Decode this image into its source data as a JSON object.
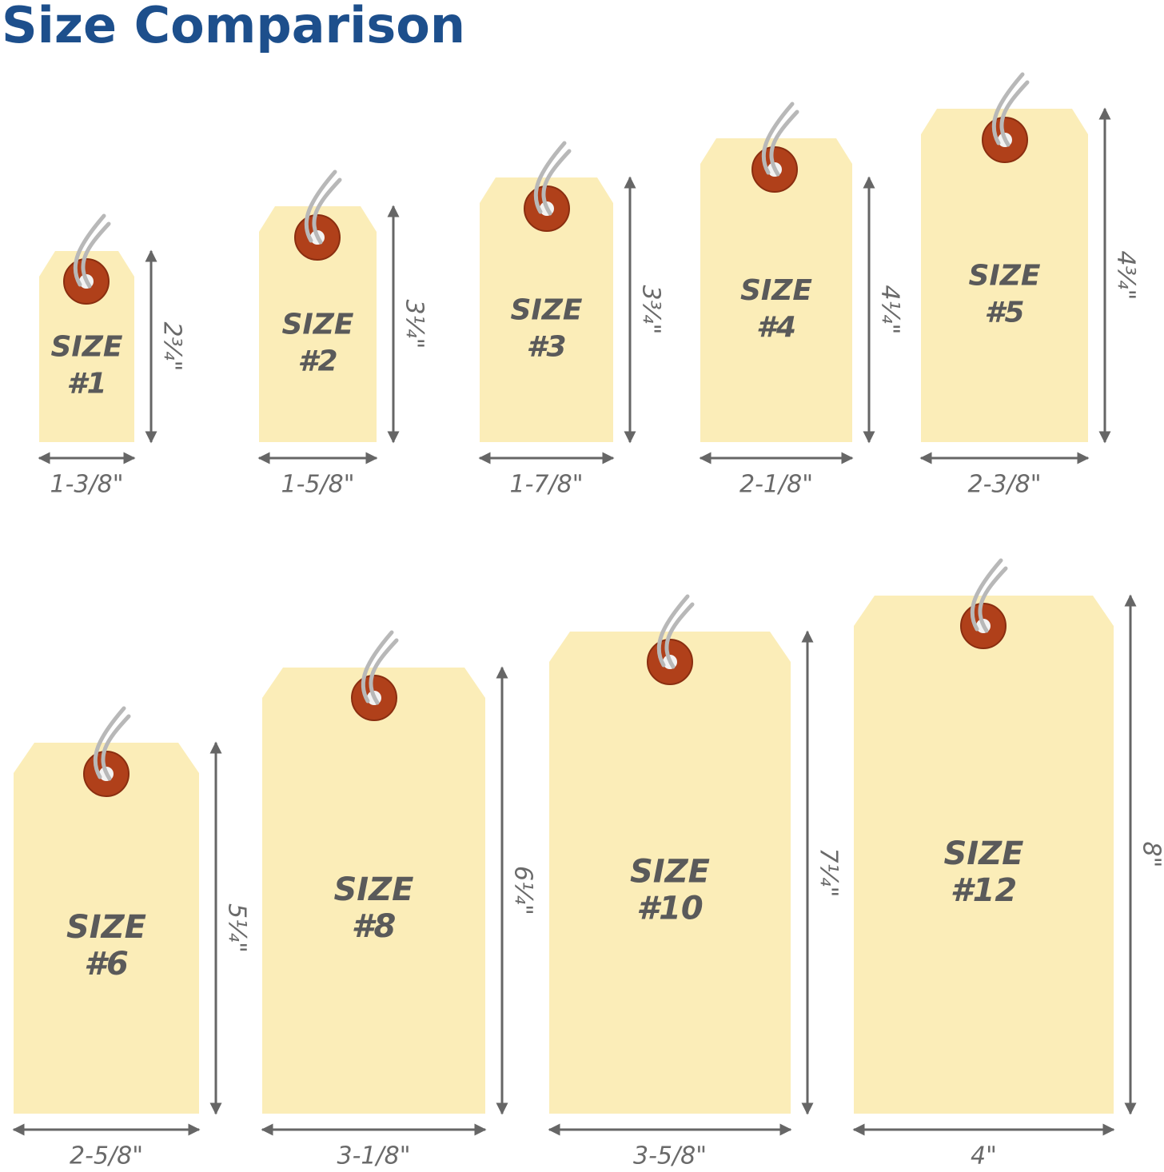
{
  "title": "Size Comparison",
  "tags": [
    {
      "label": "SIZE",
      "number": "#1",
      "height": "2¾\"",
      "width": "1-3/8\""
    },
    {
      "label": "SIZE",
      "number": "#2",
      "height": "3¼\"",
      "width": "1-5/8\""
    },
    {
      "label": "SIZE",
      "number": "#3",
      "height": "3¾\"",
      "width": "1-7/8\""
    },
    {
      "label": "SIZE",
      "number": "#4",
      "height": "4¼\"",
      "width": "2-1/8\""
    },
    {
      "label": "SIZE",
      "number": "#5",
      "height": "4¾\"",
      "width": "2-3/8\""
    },
    {
      "label": "SIZE",
      "number": "#6",
      "height": "5¼\"",
      "width": "2-5/8\""
    },
    {
      "label": "SIZE",
      "number": "#8",
      "height": "6¼\"",
      "width": "3-1/8\""
    },
    {
      "label": "SIZE",
      "number": "#10",
      "height": "7¼\"",
      "width": "3-5/8\""
    },
    {
      "label": "SIZE",
      "number": "#12",
      "height": "8\"",
      "width": "4\""
    }
  ]
}
